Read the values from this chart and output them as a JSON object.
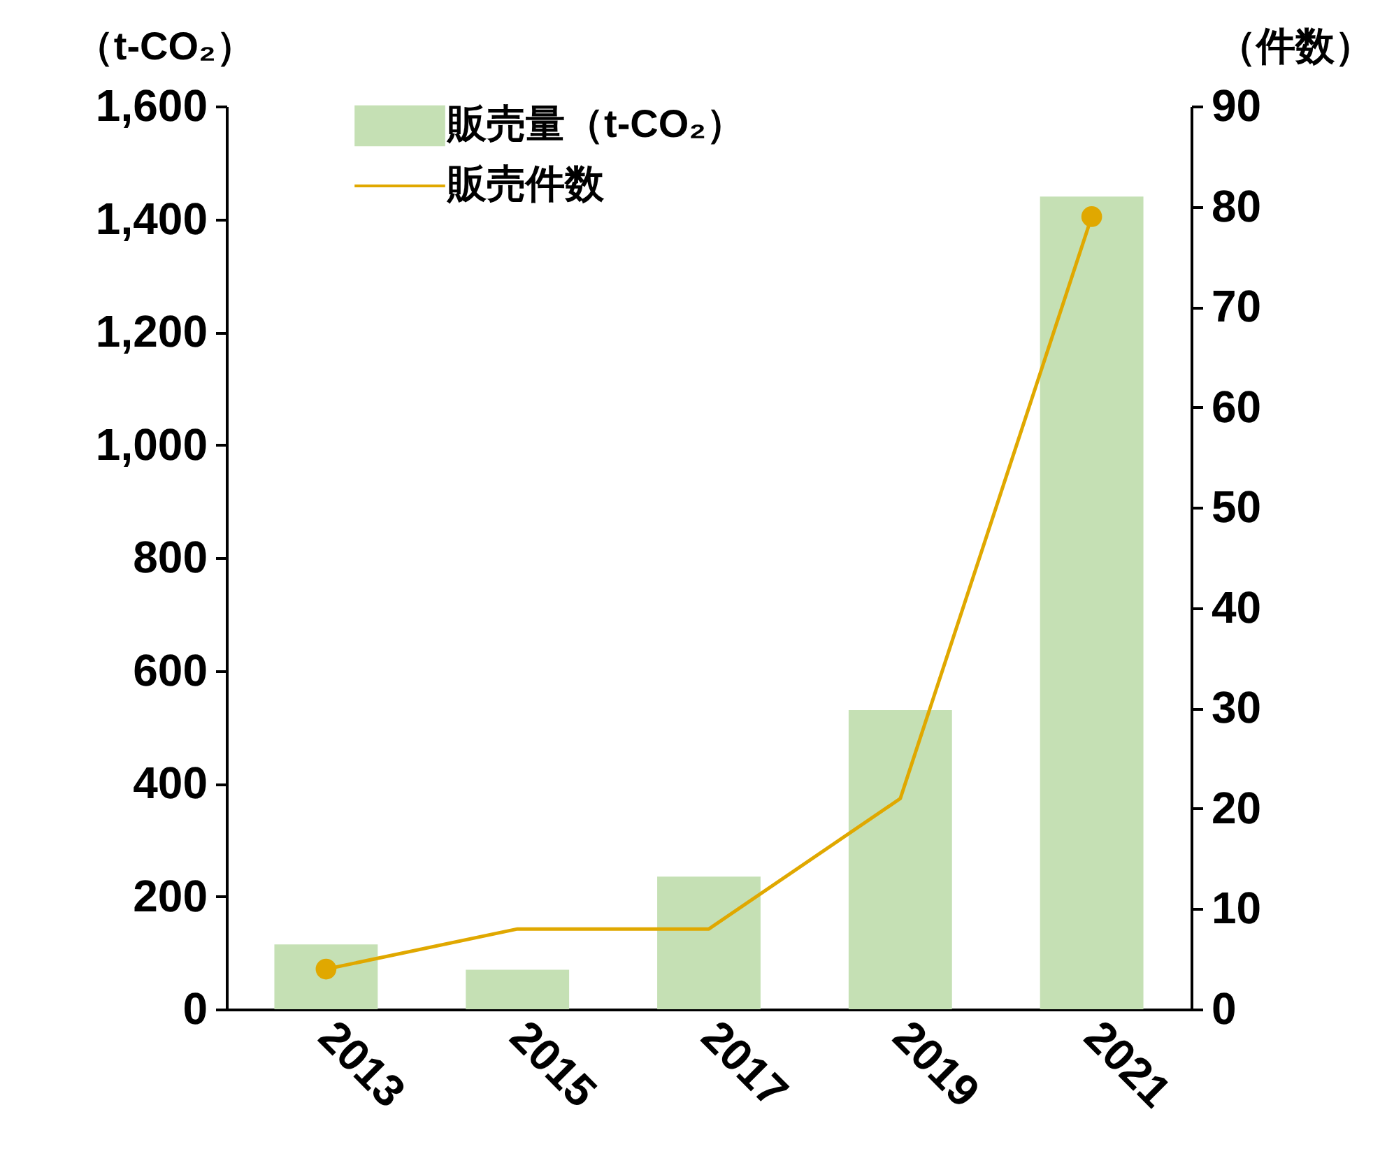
{
  "chart_data": {
    "type": "bar",
    "ylabel": "（t-CO₂）",
    "y2label": "（件数）",
    "categories": [
      "2013",
      "2015",
      "2017",
      "2019",
      "2021"
    ],
    "series": [
      {
        "name": "販売量（t-CO₂）",
        "color": "#c5e0b4",
        "values": [
          115,
          70,
          235,
          530,
          1440
        ]
      },
      {
        "name": "販売件数",
        "type": "line",
        "axis": "y2",
        "color": "#e0a800",
        "values": [
          4,
          8,
          8,
          21,
          79
        ]
      },
      {
        "type": "scatter",
        "axis": "y2",
        "color": "#e0a800",
        "values": [
          4,
          null,
          null,
          null,
          79
        ]
      }
    ],
    "ylim": [
      0,
      1600
    ],
    "yticks": [
      {
        "value": 0,
        "label": "0"
      },
      {
        "value": 200,
        "label": "200"
      },
      {
        "value": 400,
        "label": "400"
      },
      {
        "value": 600,
        "label": "600"
      },
      {
        "value": 800,
        "label": "800"
      },
      {
        "value": 1000,
        "label": "1,000"
      },
      {
        "value": 1200,
        "label": "1,200"
      },
      {
        "value": 1400,
        "label": "1,400"
      },
      {
        "value": 1600,
        "label": "1,600"
      }
    ],
    "y2lim": [
      0,
      90
    ],
    "y2ticks": [
      0,
      10,
      20,
      30,
      40,
      50,
      60,
      70,
      80,
      90
    ],
    "grid": false,
    "legend": "top left"
  }
}
